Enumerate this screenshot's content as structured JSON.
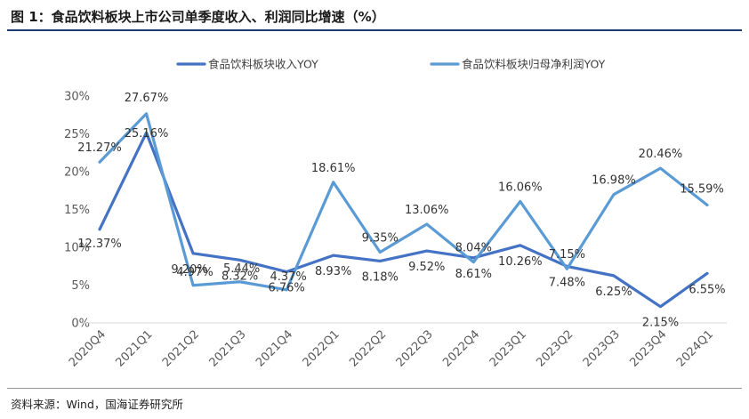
{
  "figure": {
    "title": "图 1：食品饮料板块上市公司单季度收入、利润同比增速（%）",
    "source": "资料来源：Wind，国海证券研究所"
  },
  "chart_data": {
    "type": "line",
    "title": "图 1：食品饮料板块上市公司单季度收入、利润同比增速（%）",
    "xlabel": "",
    "ylabel": "",
    "ylim": [
      0,
      30
    ],
    "yticks": [
      0,
      5,
      10,
      15,
      20,
      25,
      30
    ],
    "ytick_labels": [
      "0%",
      "5%",
      "10%",
      "15%",
      "20%",
      "25%",
      "30%"
    ],
    "categories": [
      "2020Q4",
      "2021Q1",
      "2021Q2",
      "2021Q3",
      "2021Q4",
      "2022Q1",
      "2022Q2",
      "2022Q3",
      "2022Q4",
      "2023Q1",
      "2023Q2",
      "2023Q3",
      "2023Q4",
      "2024Q1"
    ],
    "legend_position": "top",
    "grid": false,
    "series": [
      {
        "name": "食品饮料板块收入YOY",
        "color": "#4472c4",
        "values": [
          12.37,
          25.16,
          9.2,
          8.32,
          6.76,
          8.93,
          8.18,
          9.52,
          8.61,
          10.26,
          7.48,
          6.25,
          2.15,
          6.55
        ],
        "labels": [
          "12.37%",
          "25.16%",
          "9.20%",
          "8.32%",
          "6.76%",
          "8.93%",
          "8.18%",
          "9.52%",
          "8.61%",
          "10.26%",
          "7.48%",
          "6.25%",
          "2.15%",
          "6.55%"
        ]
      },
      {
        "name": "食品饮料板块归母净利润YOY",
        "color": "#5b9bd5",
        "values": [
          21.27,
          27.67,
          4.97,
          5.44,
          4.37,
          18.61,
          9.35,
          13.06,
          8.04,
          16.06,
          7.15,
          16.98,
          20.46,
          15.59
        ],
        "labels": [
          "21.27%",
          "27.67%",
          "4.97%",
          "5.44%",
          "4.37%",
          "18.61%",
          "9.35%",
          "13.06%",
          "8.04%",
          "16.06%",
          "7.15%",
          "16.98%",
          "20.46%",
          "15.59%"
        ]
      }
    ]
  }
}
